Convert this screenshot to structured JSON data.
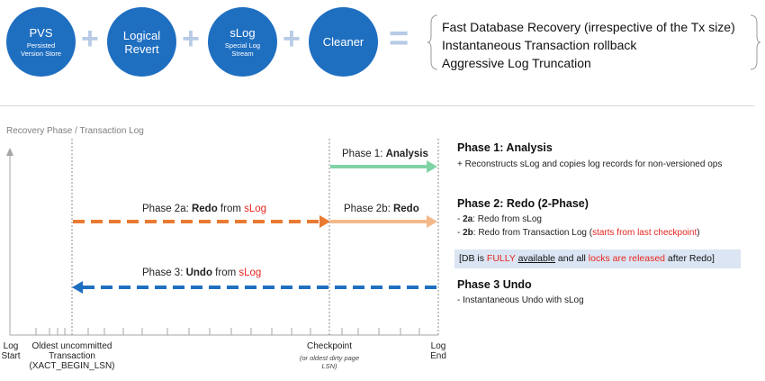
{
  "formula": {
    "terms": [
      {
        "title": "PVS",
        "subtitle": "Persisted Version Store"
      },
      {
        "title": "Logical Revert",
        "subtitle": ""
      },
      {
        "title": "sLog",
        "subtitle": "Special Log Stream"
      },
      {
        "title": "Cleaner",
        "subtitle": ""
      }
    ],
    "plus": "+",
    "equals": "=",
    "outcomes": [
      "Fast Database Recovery (irrespective of the Tx size)",
      "Instantaneous Transaction rollback",
      "Aggressive Log Truncation"
    ]
  },
  "section_title": "Recovery Phase / Transaction Log",
  "timeline": {
    "axis_labels": {
      "log_start": [
        "Log",
        "Start"
      ],
      "oldest": [
        "Oldest uncommitted",
        "Transaction",
        "(XACT_BEGIN_LSN)"
      ],
      "checkpoint": "Checkpoint",
      "checkpoint_note": [
        "(or oldest dirty page",
        "LSN)"
      ],
      "log_end": [
        "Log",
        "End"
      ]
    },
    "phases": {
      "analysis": {
        "prefix": "Phase 1: ",
        "bold": "Analysis"
      },
      "redo_2a": {
        "prefix": "Phase 2a: ",
        "bold": "Redo",
        "mid": " from ",
        "red": "sLog"
      },
      "redo_2b": {
        "prefix": "Phase 2b: ",
        "bold": "Redo"
      },
      "undo": {
        "prefix": "Phase 3: ",
        "bold": "Undo",
        "mid": " from ",
        "red": "sLog"
      }
    },
    "colors": {
      "analysis": "#7fd3a5",
      "redo_slog": "#e97a32",
      "redo_log": "#f4b98a",
      "undo": "#1f6fc1"
    }
  },
  "descriptions": {
    "phase1": {
      "heading": "Phase 1: Analysis",
      "line": "+ Reconstructs sLog and copies log records for non-versioned ops"
    },
    "phase2": {
      "heading": "Phase 2: Redo (2-Phase)",
      "a_prefix": "- ",
      "a_bold": "2a",
      "a_text": ": Redo from sLog",
      "b_prefix": "- ",
      "b_bold": "2b",
      "b_text": ": Redo from Transaction Log (",
      "b_red": "starts from last checkpoint",
      "b_end": ")"
    },
    "note": {
      "t1": "[DB is ",
      "t2": "FULLY",
      "t3": " ",
      "t4": "available",
      "t5": " and all ",
      "t6": "locks are released",
      "t7": " after Redo]"
    },
    "phase3": {
      "heading": "Phase 3 Undo",
      "line": "- Instantaneous Undo with sLog"
    }
  }
}
